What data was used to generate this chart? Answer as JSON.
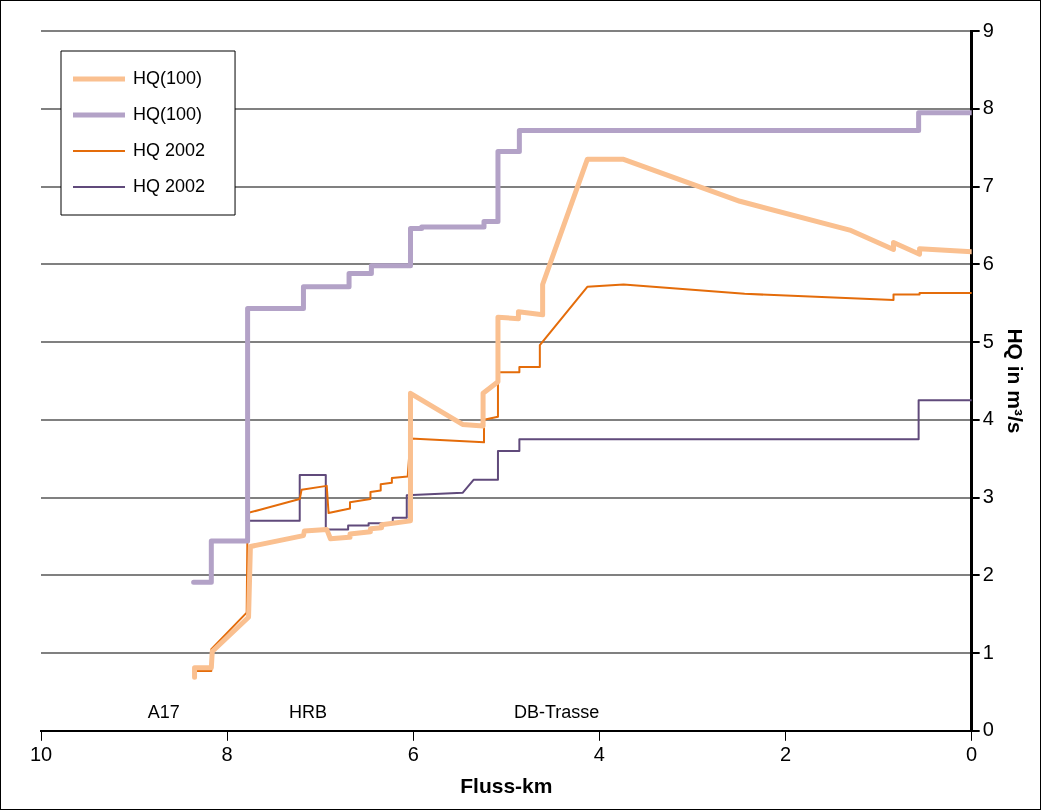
{
  "chart_data": {
    "type": "line",
    "xlabel": "Fluss-km",
    "ylabel": "HQ in m³/s",
    "xlim": [
      10,
      0
    ],
    "xticks": [
      10,
      8,
      6,
      4,
      2,
      0
    ],
    "ylim": [
      0,
      9
    ],
    "yticks": [
      0,
      1,
      2,
      3,
      4,
      5,
      6,
      7,
      8,
      9
    ],
    "grid": "y",
    "legend": "top left",
    "marker": "none",
    "line_style": "solid",
    "annotations": [
      "A17",
      "HRB",
      "DB-Trasse"
    ],
    "series": [
      {
        "name": "HQ(100)",
        "color": "#fac090",
        "x": [
          8.35,
          8.35,
          8.17,
          8.16,
          7.77,
          7.75,
          7.18,
          7.17,
          6.93,
          6.89,
          6.69,
          6.68,
          6.46,
          6.46,
          6.34,
          6.34,
          6.03,
          6.03,
          5.47,
          5.25,
          5.25,
          5.09,
          5.09,
          4.87,
          4.87,
          4.61,
          4.61,
          4.13,
          3.74,
          2.49,
          1.31,
          0.84,
          0.84,
          0.56,
          0.56,
          0
        ],
        "values": [
          0.69,
          0.81,
          0.81,
          1.02,
          1.46,
          2.37,
          2.51,
          2.57,
          2.59,
          2.47,
          2.49,
          2.53,
          2.56,
          2.6,
          2.61,
          2.65,
          2.7,
          4.34,
          3.94,
          3.92,
          4.34,
          4.49,
          5.32,
          5.3,
          5.39,
          5.35,
          5.74,
          7.35,
          7.35,
          6.81,
          6.44,
          6.19,
          6.28,
          6.13,
          6.2,
          6.16
        ]
      },
      {
        "name": "HQ(100)",
        "color": "#b3a2c7",
        "x": [
          8.36,
          8.17,
          8.17,
          7.78,
          7.78,
          7.18,
          7.18,
          6.69,
          6.69,
          6.45,
          6.45,
          6.03,
          6.03,
          5.91,
          5.91,
          5.24,
          5.24,
          5.09,
          5.09,
          4.86,
          4.86,
          0.57,
          0.57,
          0
        ],
        "values": [
          1.91,
          1.91,
          2.44,
          2.44,
          5.43,
          5.43,
          5.71,
          5.71,
          5.88,
          5.88,
          5.98,
          5.98,
          6.46,
          6.46,
          6.48,
          6.48,
          6.55,
          6.55,
          7.45,
          7.45,
          7.72,
          7.72,
          7.95,
          7.95
        ]
      },
      {
        "name": "HQ 2002",
        "color": "#e46c0a",
        "x": [
          8.36,
          8.17,
          8.17,
          7.79,
          7.78,
          7.22,
          7.2,
          6.93,
          6.91,
          6.68,
          6.68,
          6.46,
          6.46,
          6.35,
          6.35,
          6.23,
          6.23,
          6.06,
          6.03,
          5.24,
          5.24,
          5.09,
          5.09,
          4.86,
          4.86,
          4.64,
          4.64,
          4.13,
          3.74,
          2.44,
          0.84,
          0.84,
          0.56,
          0.56,
          0
        ],
        "values": [
          0.77,
          0.77,
          1.05,
          1.52,
          2.8,
          2.98,
          3.1,
          3.15,
          2.8,
          2.86,
          2.94,
          2.98,
          3.07,
          3.09,
          3.17,
          3.19,
          3.25,
          3.27,
          3.76,
          3.71,
          4,
          4.04,
          4.61,
          4.61,
          4.68,
          4.68,
          4.96,
          5.71,
          5.74,
          5.62,
          5.54,
          5.61,
          5.61,
          5.63,
          5.63
        ]
      },
      {
        "name": "HQ 2002",
        "color": "#604a7b",
        "x": [
          7.79,
          7.22,
          7.22,
          6.94,
          6.94,
          6.7,
          6.7,
          6.48,
          6.48,
          6.22,
          6.22,
          6.07,
          6.07,
          5.47,
          5.35,
          5.09,
          5.09,
          4.86,
          4.86,
          0.57,
          0.57,
          0
        ],
        "values": [
          2.7,
          2.7,
          3.29,
          3.29,
          2.59,
          2.59,
          2.64,
          2.64,
          2.67,
          2.67,
          2.74,
          2.74,
          3.03,
          3.06,
          3.23,
          3.23,
          3.6,
          3.6,
          3.75,
          3.75,
          4.25,
          4.25
        ]
      }
    ]
  }
}
